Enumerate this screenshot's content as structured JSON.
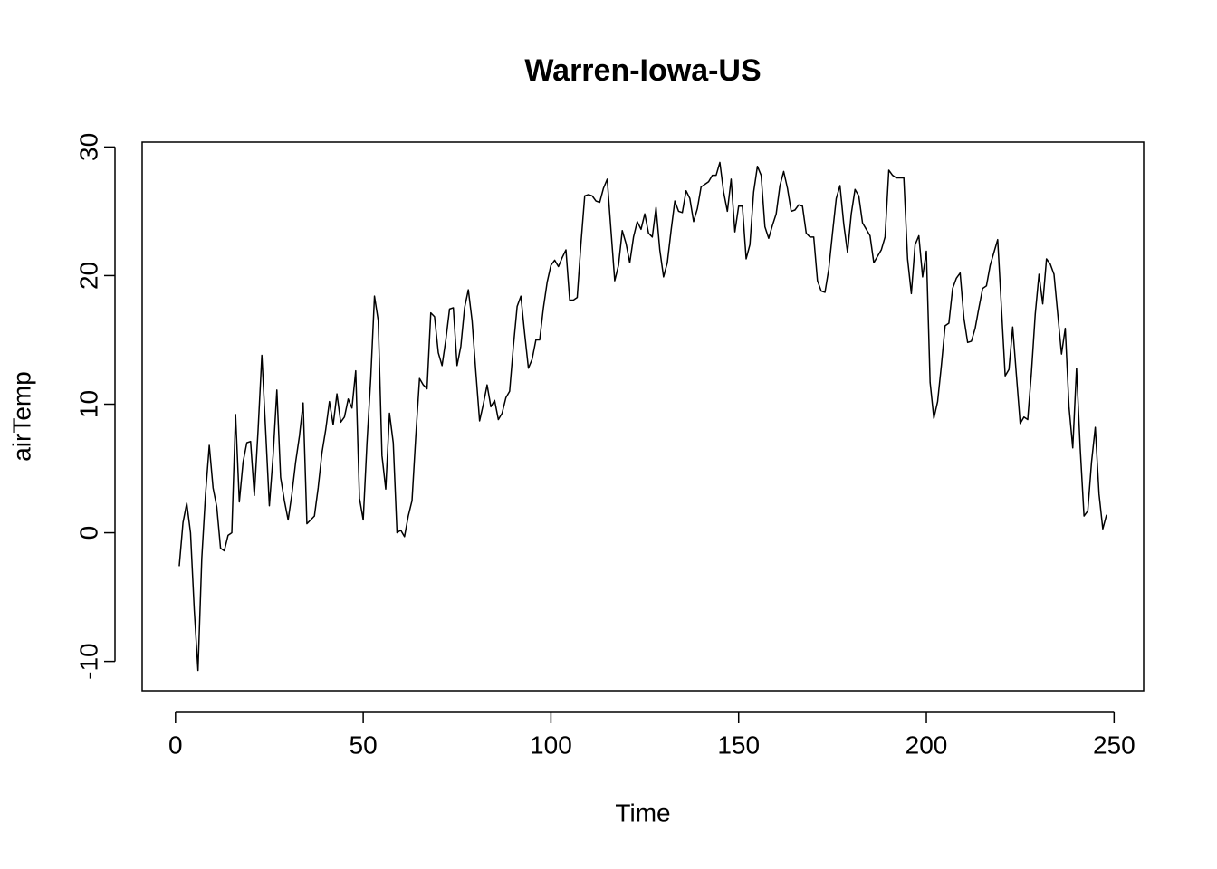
{
  "chart_data": {
    "type": "line",
    "title": "Warren-Iowa-US",
    "x_label": "Time",
    "y_label": "airTemp",
    "color": "#000000",
    "x": [
      1,
      2,
      3,
      4,
      5,
      6,
      7,
      8,
      9,
      10,
      11,
      12,
      13,
      14,
      15,
      16,
      17,
      18,
      19,
      20,
      21,
      22,
      23,
      24,
      25,
      26,
      27,
      28,
      29,
      30,
      31,
      32,
      33,
      34,
      35,
      36,
      37,
      38,
      39,
      40,
      41,
      42,
      43,
      44,
      45,
      46,
      47,
      48,
      49,
      50,
      51,
      52,
      53,
      54,
      55,
      56,
      57,
      58,
      59,
      60,
      61,
      62,
      63,
      64,
      65,
      66,
      67,
      68,
      69,
      70,
      71,
      72,
      73,
      74,
      75,
      76,
      77,
      78,
      79,
      80,
      81,
      82,
      83,
      84,
      85,
      86,
      87,
      88,
      89,
      90,
      91,
      92,
      93,
      94,
      95,
      96,
      97,
      98,
      99,
      100,
      101,
      102,
      103,
      104,
      105,
      106,
      107,
      108,
      109,
      110,
      111,
      112,
      113,
      114,
      115,
      116,
      117,
      118,
      119,
      120,
      121,
      122,
      123,
      124,
      125,
      126,
      127,
      128,
      129,
      130,
      131,
      132,
      133,
      134,
      135,
      136,
      137,
      138,
      139,
      140,
      141,
      142,
      143,
      144,
      145,
      146,
      147,
      148,
      149,
      150,
      151,
      152,
      153,
      154,
      155,
      156,
      157,
      158,
      159,
      160,
      161,
      162,
      163,
      164,
      165,
      166,
      167,
      168,
      169,
      170,
      171,
      172,
      173,
      174,
      175,
      176,
      177,
      178,
      179,
      180,
      181,
      182,
      183,
      184,
      185,
      186,
      187,
      188,
      189,
      190,
      191,
      192,
      193,
      194,
      195,
      196,
      197,
      198,
      199,
      200,
      201,
      202,
      203,
      204,
      205,
      206,
      207,
      208,
      209,
      210,
      211,
      212,
      213,
      214,
      215,
      216,
      217,
      218,
      219,
      220,
      221,
      222,
      223,
      224,
      225,
      226,
      227,
      228,
      229,
      230,
      231,
      232,
      233,
      234,
      235,
      236,
      237,
      238,
      239,
      240,
      241,
      242,
      243,
      244,
      245,
      246,
      247,
      248
    ],
    "values": [
      -2.6,
      0.8,
      2.3,
      0,
      -6,
      -10.7,
      -2,
      3,
      6.8,
      3.5,
      2,
      -1.2,
      -1.4,
      -0.2,
      0,
      9.2,
      2.4,
      5.5,
      7,
      7.1,
      2.9,
      8,
      13.8,
      8,
      2.1,
      6,
      11.1,
      4.3,
      2.5,
      1,
      3,
      5.5,
      7.5,
      10.1,
      0.7,
      1,
      1.3,
      3.5,
      6.2,
      8,
      10.2,
      8.4,
      10.8,
      8.6,
      9,
      10.4,
      9.7,
      12.6,
      2.7,
      1,
      7,
      12,
      18.4,
      16.5,
      6,
      3.4,
      9.3,
      7,
      0,
      0.2,
      -0.3,
      1.3,
      2.5,
      7.5,
      12,
      11.5,
      11.2,
      17.1,
      16.8,
      14,
      13,
      15,
      17.4,
      17.5,
      13,
      14.5,
      17.5,
      18.9,
      16.5,
      12.5,
      8.7,
      10,
      11.5,
      9.8,
      10.3,
      8.8,
      9.3,
      10.5,
      11,
      14.5,
      17.6,
      18.4,
      15.5,
      12.8,
      13.5,
      15,
      15,
      17.5,
      19.5,
      20.8,
      21.2,
      20.7,
      21.4,
      22,
      18.1,
      18.1,
      18.3,
      22.5,
      26.2,
      26.3,
      26.2,
      25.8,
      25.7,
      26.8,
      27.5,
      23.5,
      19.6,
      20.8,
      23.5,
      22.5,
      21,
      23,
      24.2,
      23.6,
      24.8,
      23.3,
      23,
      25.3,
      22,
      19.9,
      21,
      23.5,
      25.8,
      25,
      24.9,
      26.6,
      26,
      24.2,
      25.2,
      26.9,
      27.1,
      27.3,
      27.8,
      27.8,
      28.8,
      26.5,
      25,
      27.5,
      23.4,
      25.4,
      25.4,
      21.3,
      22.4,
      26.5,
      28.5,
      27.8,
      23.8,
      22.9,
      23.9,
      24.8,
      27,
      28.1,
      26.8,
      25,
      25.1,
      25.5,
      25.4,
      23.3,
      23,
      23,
      19.6,
      18.8,
      18.7,
      20.5,
      23.3,
      26,
      27,
      24,
      21.8,
      24.8,
      26.7,
      26.2,
      24.1,
      23.6,
      23.1,
      21,
      21.5,
      22,
      23,
      28.2,
      27.8,
      27.6,
      27.6,
      27.6,
      21.3,
      18.6,
      22.4,
      23.1,
      19.9,
      21.9,
      11.7,
      8.9,
      10.2,
      13,
      16.1,
      16.3,
      19,
      19.8,
      20.2,
      16.7,
      14.8,
      14.9,
      15.9,
      17.5,
      19,
      19.2,
      20.8,
      21.8,
      22.8,
      17.5,
      12.2,
      12.7,
      16,
      12.2,
      8.5,
      9,
      8.8,
      12.5,
      17,
      20.1,
      17.8,
      21.3,
      20.9,
      20.1,
      17,
      13.9,
      15.9,
      9.8,
      6.6,
      12.8,
      6.5,
      1.3,
      1.7,
      5.5,
      8.2,
      3,
      0.3,
      1.4
    ],
    "xlim": [
      -8.88,
      257.88
    ],
    "ylim": [
      -12.28,
      30.38
    ],
    "xticks": [
      0,
      50,
      100,
      150,
      200,
      250
    ],
    "yticks": [
      -10,
      0,
      10,
      20,
      30
    ]
  }
}
